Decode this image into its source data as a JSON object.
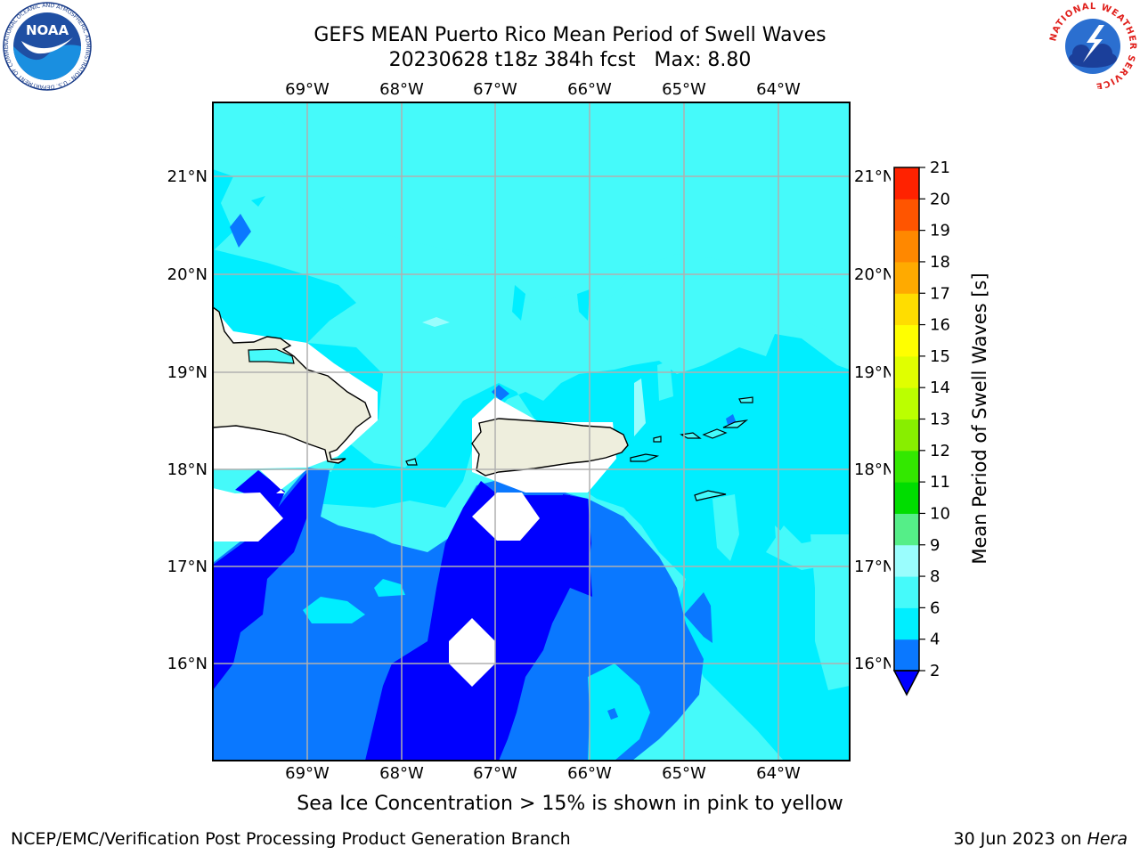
{
  "header": {
    "title_line1": "GEFS MEAN Puerto Rico Mean Period of Swell Waves",
    "title_line2": "20230628 t18z 384h fcst   Max: 8.80"
  },
  "map": {
    "lon_labels": [
      "69°W",
      "68°W",
      "67°W",
      "66°W",
      "65°W",
      "64°W"
    ],
    "lat_labels": [
      "21°N",
      "20°N",
      "19°N",
      "18°N",
      "17°N",
      "16°N"
    ],
    "lon_extent": [
      -70.0,
      -63.3
    ],
    "lat_extent": [
      15.0,
      21.75
    ]
  },
  "colorbar": {
    "label": "Mean Period of Swell Waves [s]",
    "ticks": [
      "2",
      "4",
      "6",
      "8",
      "9",
      "10",
      "11",
      "12",
      "13",
      "14",
      "15",
      "16",
      "17",
      "18",
      "19",
      "20",
      "21"
    ],
    "colors": [
      "#0a78ff",
      "#00eeff",
      "#45fafa",
      "#9afdfd",
      "#55ee88",
      "#00dd00",
      "#33e800",
      "#88ee00",
      "#bbff00",
      "#e0ff00",
      "#ffff00",
      "#ffdd00",
      "#ffaa00",
      "#ff8800",
      "#ff5500",
      "#ff2200"
    ],
    "under_color": "#0000ff",
    "top_color": "#ff0000"
  },
  "notes": {
    "sea_ice": "Sea Ice Concentration > 15% is shown in pink to yellow",
    "credit": "NCEP/EMC/Verification Post Processing Product Generation Branch",
    "date": "30 Jun 2023 on",
    "host": "Hera"
  },
  "logos": {
    "noaa_text": "NOAA",
    "noaa_ring": "NATIONAL OCEANIC AND ATMOSPHERIC ADMINISTRATION · U.S. DEPARTMENT OF COMMERCE",
    "nws_ring": "NATIONAL WEATHER SERVICE"
  }
}
